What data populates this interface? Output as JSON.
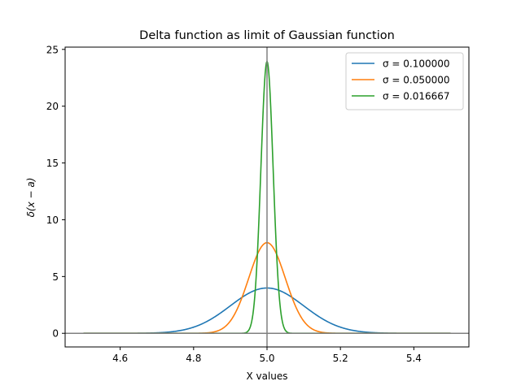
{
  "chart_data": {
    "type": "line",
    "title": "Delta function as limit of Gaussian function",
    "xlabel": "X values",
    "ylabel": "δ(x − a)",
    "xlim": [
      4.45,
      5.55
    ],
    "ylim": [
      -1.2,
      25.2
    ],
    "x_ticks": [
      4.6,
      4.8,
      5.0,
      5.2,
      5.4
    ],
    "x_tick_labels": [
      "4.6",
      "4.8",
      "5.0",
      "5.2",
      "5.4"
    ],
    "y_ticks": [
      0,
      5,
      10,
      15,
      20,
      25
    ],
    "y_tick_labels": [
      "0",
      "5",
      "10",
      "15",
      "20",
      "25"
    ],
    "x_domain": [
      4.5,
      5.5
    ],
    "center": 5.0,
    "reference_lines": {
      "vertical_x": 5.0,
      "horizontal_y": 0,
      "color": "#808080"
    },
    "legend_position": "upper right",
    "series": [
      {
        "name": "σ = 0.100000",
        "sigma": 0.1,
        "peak": 3.99,
        "color": "#1f77b4"
      },
      {
        "name": "σ = 0.050000",
        "sigma": 0.05,
        "peak": 7.98,
        "color": "#ff7f0e"
      },
      {
        "name": "σ = 0.016667",
        "sigma": 0.016667,
        "peak": 23.94,
        "color": "#2ca02c"
      }
    ]
  }
}
